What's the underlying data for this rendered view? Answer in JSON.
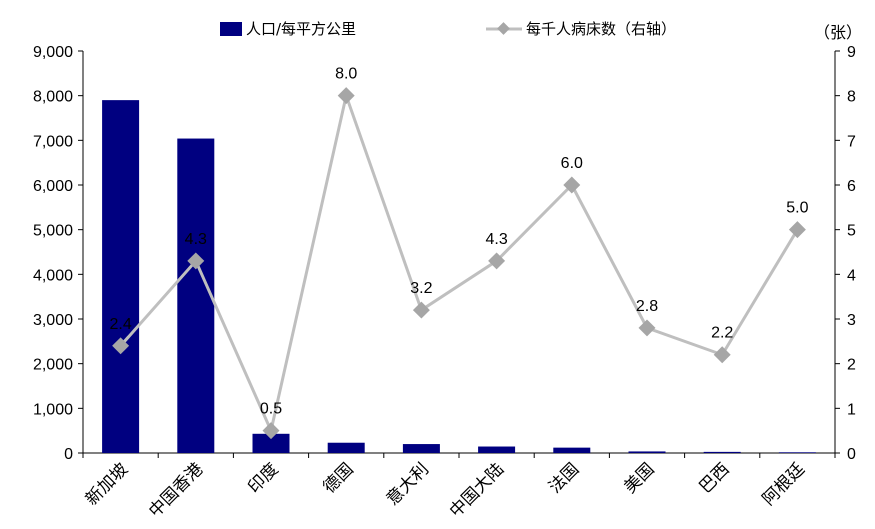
{
  "chart_data": {
    "type": "bar",
    "categories": [
      "新加坡",
      "中国香港",
      "印度",
      "德国",
      "意大利",
      "中国大陆",
      "法国",
      "美国",
      "巴西",
      "阿根廷"
    ],
    "series": [
      {
        "name": "人口/每平方公里",
        "type": "bar",
        "axis": "left",
        "color": "#000080",
        "values": [
          7900,
          7040,
          430,
          230,
          200,
          145,
          120,
          35,
          25,
          16
        ]
      },
      {
        "name": "每千人病床数（右轴）",
        "type": "line",
        "axis": "right",
        "color": "#bfbfbf",
        "marker_color": "#a6a6a6",
        "values": [
          2.4,
          4.3,
          0.5,
          8.0,
          3.2,
          4.3,
          6.0,
          2.8,
          2.2,
          5.0
        ],
        "labels": [
          "2.4",
          "4.3",
          "0.5",
          "8.0",
          "3.2",
          "4.3",
          "6.0",
          "2.8",
          "2.2",
          "5.0"
        ]
      }
    ],
    "y_left": {
      "range": [
        0,
        9000
      ],
      "ticks": [
        0,
        1000,
        2000,
        3000,
        4000,
        5000,
        6000,
        7000,
        8000,
        9000
      ],
      "tick_labels": [
        "0",
        "1,000",
        "2,000",
        "3,000",
        "4,000",
        "5,000",
        "6,000",
        "7,000",
        "8,000",
        "9,000"
      ]
    },
    "y_right": {
      "range": [
        0,
        9
      ],
      "ticks": [
        0,
        1,
        2,
        3,
        4,
        5,
        6,
        7,
        8,
        9
      ],
      "tick_labels": [
        "0",
        "1",
        "2",
        "3",
        "4",
        "5",
        "6",
        "7",
        "8",
        "9"
      ],
      "unit": "（张）"
    },
    "legend_position": "top-center",
    "grid": false
  }
}
